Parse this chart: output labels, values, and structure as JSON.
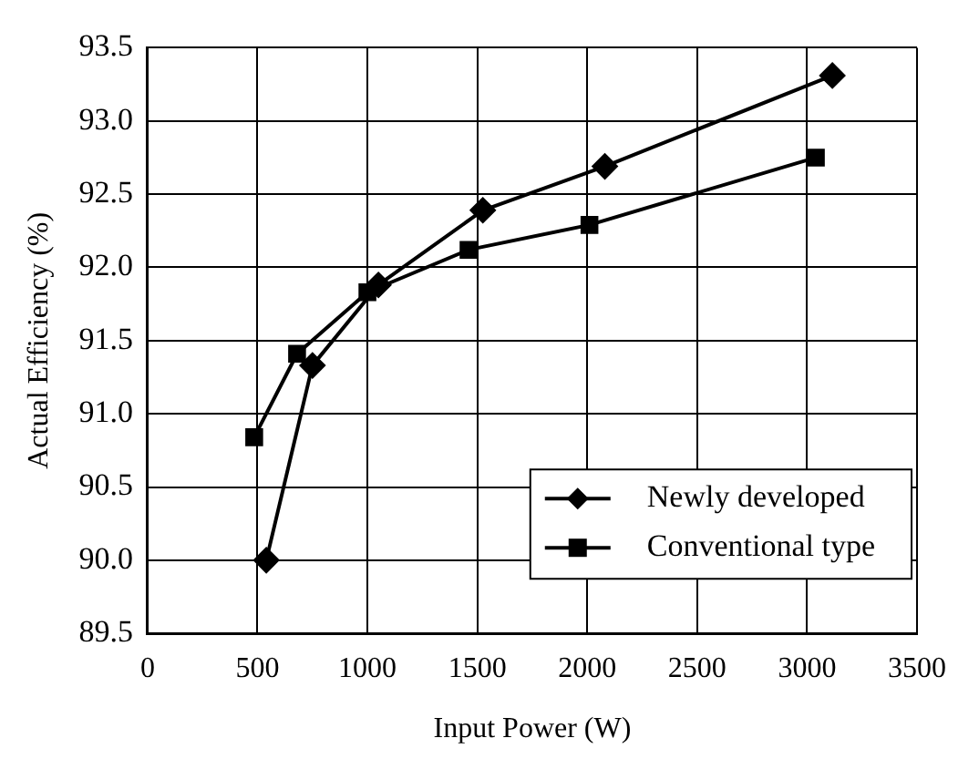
{
  "chart_data": {
    "type": "line",
    "xlabel": "Input Power (W)",
    "ylabel": "Actual Efficiency (%)",
    "xlim": [
      0,
      3500
    ],
    "xticks": [
      0,
      500,
      1000,
      1500,
      2000,
      2500,
      3000,
      3500
    ],
    "ylim": [
      89.5,
      93.5
    ],
    "yticks": [
      {
        "value": 89.5,
        "label": "89.5"
      },
      {
        "value": 90,
        "label": "90.0"
      },
      {
        "value": 90.5,
        "label": "90.5"
      },
      {
        "value": 91,
        "label": "91.0"
      },
      {
        "value": 91.5,
        "label": "91.5"
      },
      {
        "value": 92,
        "label": "92.0"
      },
      {
        "value": 92.5,
        "label": "92.5"
      },
      {
        "value": 93,
        "label": "93.0"
      },
      {
        "value": 93.5,
        "label": "93.5"
      }
    ],
    "grid": true,
    "legend": "bottom right",
    "line_style": "solid",
    "series": [
      {
        "name": "Newly developed",
        "color": "#000000",
        "marker": "diamond",
        "x": [
          540,
          750,
          1050,
          1525,
          2080,
          3115
        ],
        "values": [
          90.0,
          91.33,
          91.88,
          92.39,
          92.69,
          93.31
        ]
      },
      {
        "name": "Conventional type",
        "color": "#000000",
        "marker": "square",
        "x": [
          485,
          680,
          1000,
          1460,
          2010,
          3040
        ],
        "values": [
          90.84,
          91.41,
          91.83,
          92.12,
          92.29,
          92.75
        ]
      }
    ]
  }
}
